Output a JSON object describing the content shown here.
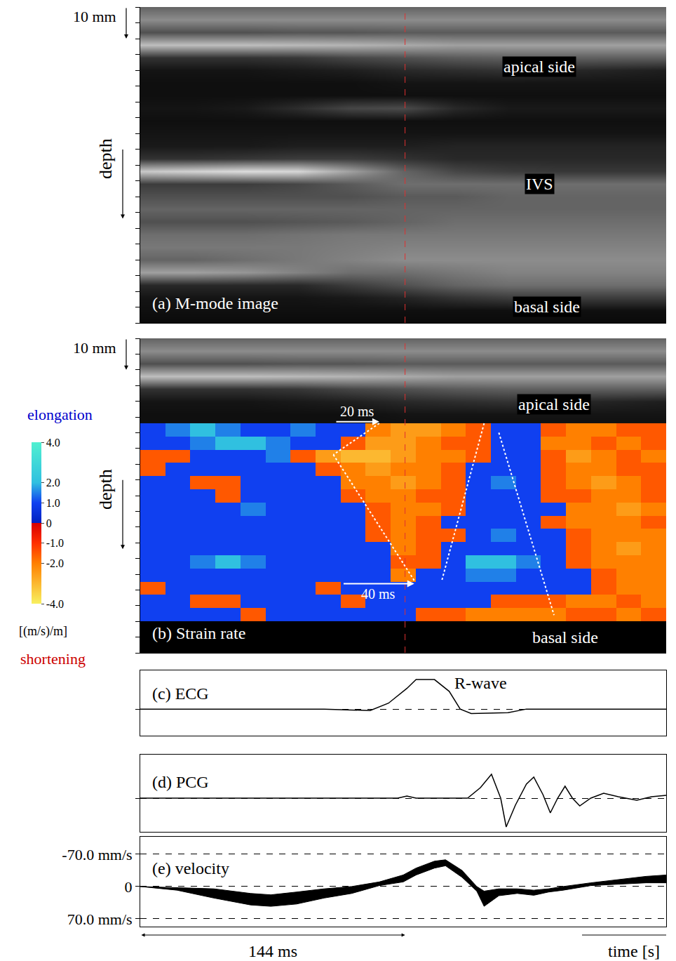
{
  "chart_data": [
    {
      "type": "heatmap",
      "title": "(a) M-mode image",
      "x": [
        0,
        28.6,
        57.2,
        85.8,
        114.4,
        143,
        171.6,
        200.2,
        228.8,
        257.4,
        286
      ],
      "y": [
        0,
        4,
        8,
        12,
        16,
        20,
        24,
        28,
        32,
        36,
        40,
        44,
        48,
        52,
        56,
        60,
        64,
        68,
        72,
        76,
        80,
        84,
        88,
        92,
        96,
        100
      ],
      "cells": [
        [
          100,
          100,
          100,
          100,
          100,
          100,
          100,
          100,
          100,
          100,
          100
        ],
        [
          140,
          140,
          140,
          140,
          140,
          140,
          140,
          140,
          140,
          140,
          140
        ],
        [
          80,
          80,
          80,
          85,
          85,
          90,
          90,
          90,
          90,
          90,
          90
        ],
        [
          190,
          190,
          190,
          185,
          180,
          170,
          160,
          160,
          160,
          160,
          160
        ],
        [
          50,
          50,
          50,
          55,
          70,
          80,
          90,
          95,
          95,
          95,
          95
        ],
        [
          20,
          20,
          20,
          25,
          30,
          40,
          45,
          50,
          40,
          35,
          30
        ],
        [
          15,
          15,
          15,
          15,
          15,
          20,
          20,
          20,
          20,
          20,
          20
        ],
        [
          15,
          15,
          15,
          15,
          15,
          15,
          15,
          15,
          15,
          15,
          15
        ],
        [
          20,
          20,
          25,
          45,
          70,
          75,
          40,
          25,
          25,
          25,
          25
        ],
        [
          15,
          15,
          15,
          15,
          15,
          15,
          15,
          15,
          15,
          15,
          15
        ],
        [
          20,
          20,
          20,
          20,
          20,
          20,
          20,
          20,
          20,
          20,
          20
        ],
        [
          25,
          25,
          25,
          30,
          30,
          30,
          35,
          35,
          35,
          35,
          35
        ],
        [
          50,
          50,
          55,
          60,
          60,
          50,
          40,
          40,
          40,
          40,
          40
        ],
        [
          200,
          210,
          220,
          215,
          160,
          100,
          70,
          60,
          55,
          55,
          55
        ],
        [
          60,
          60,
          60,
          70,
          90,
          110,
          110,
          110,
          110,
          110,
          110
        ],
        [
          80,
          80,
          80,
          80,
          80,
          90,
          90,
          100,
          100,
          100,
          100
        ],
        [
          100,
          100,
          100,
          100,
          100,
          100,
          100,
          100,
          100,
          100,
          100
        ],
        [
          80,
          80,
          80,
          85,
          90,
          100,
          110,
          110,
          110,
          110,
          110
        ],
        [
          110,
          110,
          110,
          115,
          120,
          120,
          120,
          120,
          120,
          120,
          120
        ],
        [
          120,
          120,
          120,
          120,
          125,
          130,
          130,
          130,
          130,
          130,
          130
        ],
        [
          100,
          100,
          110,
          120,
          130,
          140,
          140,
          140,
          140,
          140,
          140
        ],
        [
          160,
          160,
          150,
          130,
          110,
          110,
          120,
          130,
          130,
          130,
          130
        ],
        [
          40,
          40,
          40,
          40,
          60,
          80,
          100,
          110,
          110,
          110,
          110
        ],
        [
          20,
          20,
          20,
          20,
          25,
          35,
          50,
          60,
          60,
          60,
          60
        ],
        [
          15,
          15,
          15,
          15,
          15,
          15,
          15,
          15,
          15,
          15,
          15
        ],
        [
          10,
          10,
          10,
          10,
          10,
          10,
          10,
          10,
          10,
          10,
          10
        ]
      ],
      "zlim": [
        0,
        255
      ],
      "xlim": [
        0,
        286
      ],
      "ylim": [
        100,
        0
      ],
      "yticks": [
        0,
        5,
        10,
        15,
        20,
        25,
        30,
        35,
        40,
        45,
        50,
        55,
        60,
        65,
        70,
        75,
        80,
        85,
        90,
        95,
        100
      ],
      "tick_labels": false,
      "y_label": "depth",
      "scale_label": "10 mm",
      "scale": 10,
      "marker_time": 144,
      "annotations": [
        {
          "text": "apical side",
          "x": 217,
          "y": 19
        },
        {
          "text": "IVS",
          "x": 217,
          "y": 56
        },
        {
          "text": "basal side",
          "x": 221,
          "y": 95
        }
      ]
    },
    {
      "type": "heatmap",
      "title": "(b) Strain rate",
      "x": [
        0,
        13.6,
        27.2,
        40.9,
        54.5,
        68.1,
        81.7,
        95.3,
        109,
        122.6,
        136.2,
        149.8,
        163.4,
        177,
        190.7,
        204.3,
        217.9,
        231.5,
        245.1,
        258.7,
        272.3,
        286
      ],
      "y": [
        27,
        31.2,
        35.4,
        39.6,
        43.8,
        48,
        52.2,
        56.4,
        60.6,
        64.8,
        69,
        73.2,
        77.4,
        81.6,
        85.8,
        90
      ],
      "cells": [
        [
          1,
          1.5,
          2,
          1.5,
          1,
          1,
          1.5,
          1,
          1,
          -2,
          -2.5,
          -2.5,
          -2,
          -1.5,
          1,
          1,
          -1.5,
          -2,
          -2,
          -1.5,
          -1.5
        ],
        [
          1,
          1,
          1.5,
          2,
          2,
          1.5,
          1,
          1,
          -1.5,
          -2.5,
          -2.5,
          -2,
          -1.5,
          -1.5,
          1,
          1,
          -2,
          -2,
          -1.5,
          -2,
          -1.5
        ],
        [
          -1.5,
          -1.5,
          1,
          1,
          1,
          1.5,
          -1.5,
          -2.5,
          -3,
          -3,
          -2.5,
          -2,
          -2,
          -1.5,
          1,
          1,
          -1.5,
          -2.5,
          -2,
          -1.5,
          -2
        ],
        [
          -1.5,
          1,
          1,
          1,
          1,
          1,
          1,
          -1.5,
          -2,
          -2.5,
          -2,
          -2,
          -1.5,
          1,
          1,
          1,
          -1.5,
          -2,
          -2,
          -1.5,
          -1.5
        ],
        [
          1,
          1,
          -1.5,
          -1.5,
          1,
          1,
          1,
          1,
          -2,
          -2,
          -2.5,
          -2,
          -1.5,
          1,
          1.5,
          1,
          -1.5,
          -2,
          -2.5,
          -2,
          -1.5
        ],
        [
          1,
          1,
          1,
          -1.5,
          1,
          1,
          1,
          1,
          -1.5,
          -2,
          -2,
          -1.5,
          -1.5,
          1,
          1,
          1,
          -1.5,
          -1.5,
          -2,
          -2,
          -1.5
        ],
        [
          1,
          1,
          1,
          1,
          1.5,
          1,
          1,
          1,
          1,
          -1.5,
          -2,
          -2,
          -1.5,
          1,
          1,
          1,
          1,
          -2,
          -2,
          -2.5,
          -2
        ],
        [
          1,
          1,
          1,
          1,
          1,
          1,
          1,
          1,
          1,
          -1.5,
          -2,
          -1.5,
          1,
          1,
          1,
          1,
          -1.5,
          -2,
          -2,
          -2,
          -1.5
        ],
        [
          1,
          1,
          1,
          1,
          1,
          1,
          1,
          1,
          1,
          -1.5,
          -2,
          -1.5,
          -1.5,
          1,
          1.5,
          1,
          1,
          -1.5,
          -2,
          -2,
          -2
        ],
        [
          1,
          1,
          1,
          1,
          1,
          1,
          1,
          1,
          1,
          1,
          -2,
          -1.5,
          1,
          1,
          1,
          1,
          1,
          -1.5,
          -2,
          -2.5,
          -2
        ],
        [
          1,
          1,
          1.5,
          2,
          1.5,
          1,
          1,
          1,
          1,
          1,
          -1.5,
          -1.5,
          1,
          2,
          2,
          1.5,
          1,
          -1.5,
          -2,
          -2,
          -2
        ],
        [
          1,
          1,
          1,
          1,
          1,
          1,
          1,
          1,
          1,
          1,
          -2,
          1,
          1,
          1.5,
          1.5,
          1,
          1,
          1,
          -1.5,
          -2,
          -2
        ],
        [
          -1.5,
          1,
          1,
          1,
          1,
          1,
          1,
          -1.5,
          1,
          1,
          1,
          1,
          1,
          1,
          1,
          1,
          1,
          1,
          -1.5,
          -2,
          -2
        ],
        [
          1,
          1,
          -1.5,
          -1.5,
          1,
          1,
          1,
          1,
          -1.5,
          1,
          1,
          1,
          1,
          1,
          -1.5,
          -1.5,
          -1.5,
          -2,
          -2,
          -1.5,
          -2
        ],
        [
          1,
          1,
          1,
          1,
          -1.5,
          1,
          1,
          1,
          1,
          1,
          1,
          -1.5,
          -1.5,
          -2,
          -2,
          -2,
          -2,
          -1.5,
          -1.5,
          -2,
          -1.5
        ]
      ],
      "zlim": [
        -4,
        4
      ],
      "colorbar_ticks": [
        {
          "value": 4,
          "label": "4.0"
        },
        {
          "value": 2,
          "label": "2.0"
        },
        {
          "value": 1,
          "label": "1.0"
        },
        0,
        {
          "value": -1,
          "label": "-1.0"
        },
        {
          "value": -2,
          "label": "-2.0"
        },
        {
          "value": -4,
          "label": "-4.0"
        }
      ],
      "colorbar_label": "[(m/s)/m]",
      "colorbar_top_label": "elongation",
      "colorbar_bottom_label": "shortening",
      "xlim": [
        0,
        286
      ],
      "ylim": [
        100,
        0
      ],
      "yticks": [
        0,
        5,
        10,
        15,
        20,
        25,
        30,
        35,
        40,
        45,
        50,
        55,
        60,
        65,
        70,
        75,
        80,
        85,
        90,
        95,
        100
      ],
      "tick_labels": false,
      "y_label": "depth",
      "scale_label": "10 mm",
      "scale": 10,
      "marker_time": 144,
      "dashed_lines": [
        [
          130,
          27,
          105,
          37
        ],
        [
          105,
          37,
          149,
          77
        ],
        [
          187,
          27,
          164,
          77
        ],
        [
          195,
          30,
          225,
          88
        ]
      ],
      "arrows": [
        {
          "label": "20 ms",
          "x0": 106,
          "x1": 130,
          "y": 26.5
        },
        {
          "label": "40 ms",
          "x0": 110,
          "x1": 149,
          "y": 78
        }
      ],
      "annotations": [
        {
          "text": "apical side",
          "x": 225,
          "y": 21
        },
        {
          "text": "basal side",
          "x": 231,
          "y": 95
        }
      ]
    },
    {
      "type": "line",
      "title": "(c) ECG",
      "color": "black",
      "x": [
        0,
        100,
        125,
        135,
        145,
        150,
        160,
        168,
        174,
        180,
        200,
        210,
        286
      ],
      "values": [
        0,
        0,
        -0.05,
        0.2,
        0.7,
        1,
        1,
        0.6,
        0,
        -0.15,
        -0.12,
        0,
        0
      ],
      "xlim": [
        0,
        286
      ],
      "ylim": [
        -0.9,
        1.31
      ],
      "yticks": [
        0
      ],
      "grid": true,
      "tick_labels": false,
      "annotations": [
        {
          "text": "R-wave",
          "x": 185,
          "y": 0.88
        }
      ]
    },
    {
      "type": "line",
      "title": "(d) PCG",
      "color": "black",
      "x": [
        0,
        140,
        145,
        150,
        178,
        185,
        191,
        196,
        199,
        204,
        210,
        214,
        219,
        223,
        227,
        231,
        235,
        239,
        245,
        252,
        260,
        270,
        278,
        286
      ],
      "values": [
        0,
        0,
        3,
        0,
        0,
        15,
        34,
        0,
        -41,
        -10,
        20,
        30,
        5,
        -21,
        0,
        17,
        0,
        -11,
        0,
        7,
        2,
        -3,
        2,
        4
      ],
      "xlim": [
        0,
        286
      ],
      "ylim": [
        -48,
        62
      ],
      "yticks": [
        0
      ],
      "grid": true,
      "tick_labels": false
    },
    {
      "type": "line",
      "title": "(e) velocity",
      "color": "black",
      "x": [
        0,
        20,
        40,
        60,
        71,
        85,
        100,
        115,
        130,
        143,
        150,
        160,
        166,
        175,
        183,
        187,
        195,
        205,
        214,
        222,
        230,
        245,
        260,
        275,
        286
      ],
      "low": [
        0,
        2,
        5,
        15,
        18,
        12,
        5,
        0,
        -10,
        -25,
        -40,
        -55,
        -58,
        -35,
        0,
        10,
        5,
        5,
        8,
        5,
        0,
        -8,
        -15,
        -22,
        -25
      ],
      "high": [
        0,
        8,
        25,
        40,
        43,
        38,
        25,
        15,
        -2,
        -10,
        -25,
        -40,
        -45,
        -20,
        10,
        43,
        20,
        15,
        19,
        12,
        8,
        -2,
        -5,
        -8,
        -8
      ],
      "xlim": [
        0,
        286
      ],
      "ylim": [
        87,
        -108
      ],
      "yticks": [
        {
          "value": -70,
          "label": "-70.0 mm/s"
        },
        0,
        {
          "value": 70,
          "label": "70.0 mm/s"
        }
      ],
      "grid": true,
      "tick_labels": "y",
      "x_label": "time [s]",
      "marker_time": 144,
      "marker_label": "144 ms"
    }
  ]
}
